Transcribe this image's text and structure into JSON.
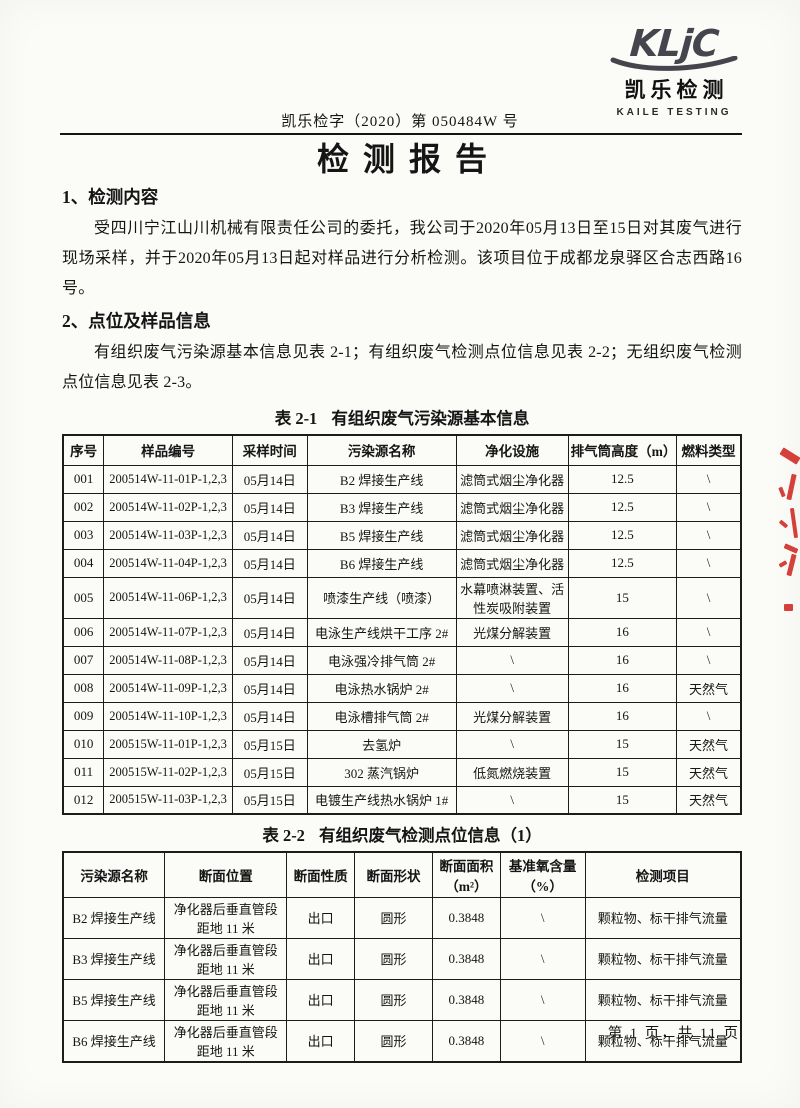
{
  "logo": {
    "mark": "KLjC",
    "name_cn": "凯乐检测",
    "name_en": "KAILE TESTING"
  },
  "doc_number": "凯乐检字（2020）第 050484W 号",
  "title": "检测报告",
  "sections": [
    {
      "heading": "1、检测内容",
      "paragraphs": [
        "受四川宁江山川机械有限责任公司的委托，我公司于2020年05月13日至15日对其废气进行现场采样，并于2020年05月13日起对样品进行分析检测。该项目位于成都龙泉驿区合志西路16号。"
      ]
    },
    {
      "heading": "2、点位及样品信息",
      "paragraphs": [
        "有组织废气污染源基本信息见表 2-1；有组织废气检测点位信息见表 2-2；无组织废气检测点位信息见表 2-3。"
      ]
    }
  ],
  "table1": {
    "caption_label": "表 2-1",
    "caption_text": "有组织废气污染源基本信息",
    "headers": [
      "序号",
      "样品编号",
      "采样时间",
      "污染源名称",
      "净化设施",
      "排气筒高度（m）",
      "燃料类型"
    ],
    "rows": [
      [
        "001",
        "200514W-11-01P-1,2,3",
        "05月14日",
        "B2 焊接生产线",
        "滤筒式烟尘净化器",
        "12.5",
        "\\"
      ],
      [
        "002",
        "200514W-11-02P-1,2,3",
        "05月14日",
        "B3 焊接生产线",
        "滤筒式烟尘净化器",
        "12.5",
        "\\"
      ],
      [
        "003",
        "200514W-11-03P-1,2,3",
        "05月14日",
        "B5 焊接生产线",
        "滤筒式烟尘净化器",
        "12.5",
        "\\"
      ],
      [
        "004",
        "200514W-11-04P-1,2,3",
        "05月14日",
        "B6 焊接生产线",
        "滤筒式烟尘净化器",
        "12.5",
        "\\"
      ],
      [
        "005",
        "200514W-11-06P-1,2,3",
        "05月14日",
        "喷漆生产线（喷漆）",
        "水幕喷淋装置、活性炭吸附装置",
        "15",
        "\\"
      ],
      [
        "006",
        "200514W-11-07P-1,2,3",
        "05月14日",
        "电泳生产线烘干工序 2#",
        "光煤分解装置",
        "16",
        "\\"
      ],
      [
        "007",
        "200514W-11-08P-1,2,3",
        "05月14日",
        "电泳强冷排气筒 2#",
        "\\",
        "16",
        "\\"
      ],
      [
        "008",
        "200514W-11-09P-1,2,3",
        "05月14日",
        "电泳热水锅炉 2#",
        "\\",
        "16",
        "天然气"
      ],
      [
        "009",
        "200514W-11-10P-1,2,3",
        "05月14日",
        "电泳槽排气筒 2#",
        "光煤分解装置",
        "16",
        "\\"
      ],
      [
        "010",
        "200515W-11-01P-1,2,3",
        "05月15日",
        "去氢炉",
        "\\",
        "15",
        "天然气"
      ],
      [
        "011",
        "200515W-11-02P-1,2,3",
        "05月15日",
        "302 蒸汽锅炉",
        "低氮燃烧装置",
        "15",
        "天然气"
      ],
      [
        "012",
        "200515W-11-03P-1,2,3",
        "05月15日",
        "电镀生产线热水锅炉 1#",
        "\\",
        "15",
        "天然气"
      ]
    ]
  },
  "table2": {
    "caption_label": "表 2-2",
    "caption_text": "有组织废气检测点位信息（1）",
    "headers": [
      "污染源名称",
      "断面位置",
      "断面性质",
      "断面形状",
      "断面面积\n（m²）",
      "基准氧含量\n（%）",
      "检测项目"
    ],
    "rows": [
      [
        "B2 焊接生产线",
        "净化器后垂直管段\n距地 11 米",
        "出口",
        "圆形",
        "0.3848",
        "\\",
        "颗粒物、标干排气流量"
      ],
      [
        "B3 焊接生产线",
        "净化器后垂直管段\n距地 11 米",
        "出口",
        "圆形",
        "0.3848",
        "\\",
        "颗粒物、标干排气流量"
      ],
      [
        "B5 焊接生产线",
        "净化器后垂直管段\n距地 11 米",
        "出口",
        "圆形",
        "0.3848",
        "\\",
        "颗粒物、标干排气流量"
      ],
      [
        "B6 焊接生产线",
        "净化器后垂直管段\n距地 11 米",
        "出口",
        "圆形",
        "0.3848",
        "\\",
        "颗粒物、标干排气流量"
      ]
    ]
  },
  "footer": {
    "page_info": "第 1 页，共 11 页"
  },
  "colors": {
    "stamp_red": "#cf2b26",
    "logo_gray": "#45454d",
    "ink": "#151515",
    "paper": "#fbfbf8"
  }
}
